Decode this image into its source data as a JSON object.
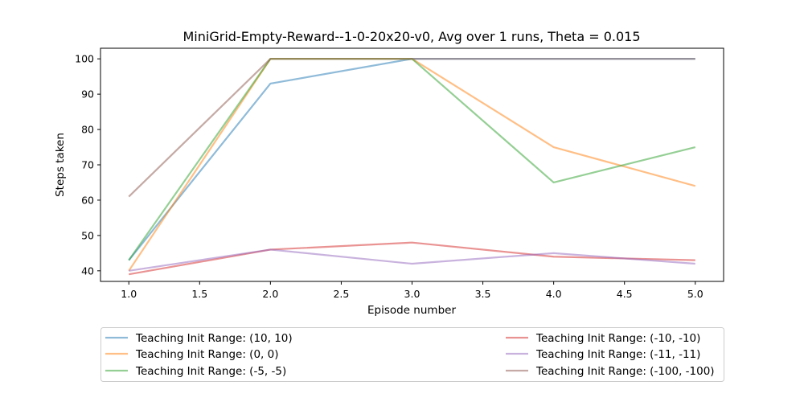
{
  "chart_data": {
    "type": "line",
    "title": "MiniGrid-Empty-Reward--1-0-20x20-v0, Avg over 1 runs, Theta = 0.015",
    "xlabel": "Episode number",
    "ylabel": "Steps taken",
    "x": [
      1,
      2,
      3,
      4,
      5
    ],
    "xlim": [
      0.8,
      5.2
    ],
    "ylim": [
      37,
      103
    ],
    "xticks": [
      "1.0",
      "1.5",
      "2.0",
      "2.5",
      "3.0",
      "3.5",
      "4.0",
      "4.5",
      "5.0"
    ],
    "yticks": [
      "40",
      "50",
      "60",
      "70",
      "80",
      "90",
      "100"
    ],
    "grid": false,
    "legend_placement": "below",
    "series": [
      {
        "name": "Teaching Init Range: (10, 10)",
        "color": "#1f77b4",
        "values": [
          43,
          93,
          100,
          100,
          100
        ]
      },
      {
        "name": "Teaching Init Range: (0, 0)",
        "color": "#ff7f0e",
        "values": [
          40,
          100,
          100,
          75,
          64
        ]
      },
      {
        "name": "Teaching Init Range: (-5, -5)",
        "color": "#2ca02c",
        "values": [
          43,
          100,
          100,
          65,
          75
        ]
      },
      {
        "name": "Teaching Init Range: (-10, -10)",
        "color": "#d62728",
        "values": [
          39,
          46,
          48,
          44,
          43
        ]
      },
      {
        "name": "Teaching Init Range: (-11, -11)",
        "color": "#9467bd",
        "values": [
          40,
          46,
          42,
          45,
          42
        ]
      },
      {
        "name": "Teaching Init Range: (-100, -100)",
        "color": "#8c564b",
        "values": [
          61,
          100,
          100,
          100,
          100
        ]
      }
    ]
  }
}
